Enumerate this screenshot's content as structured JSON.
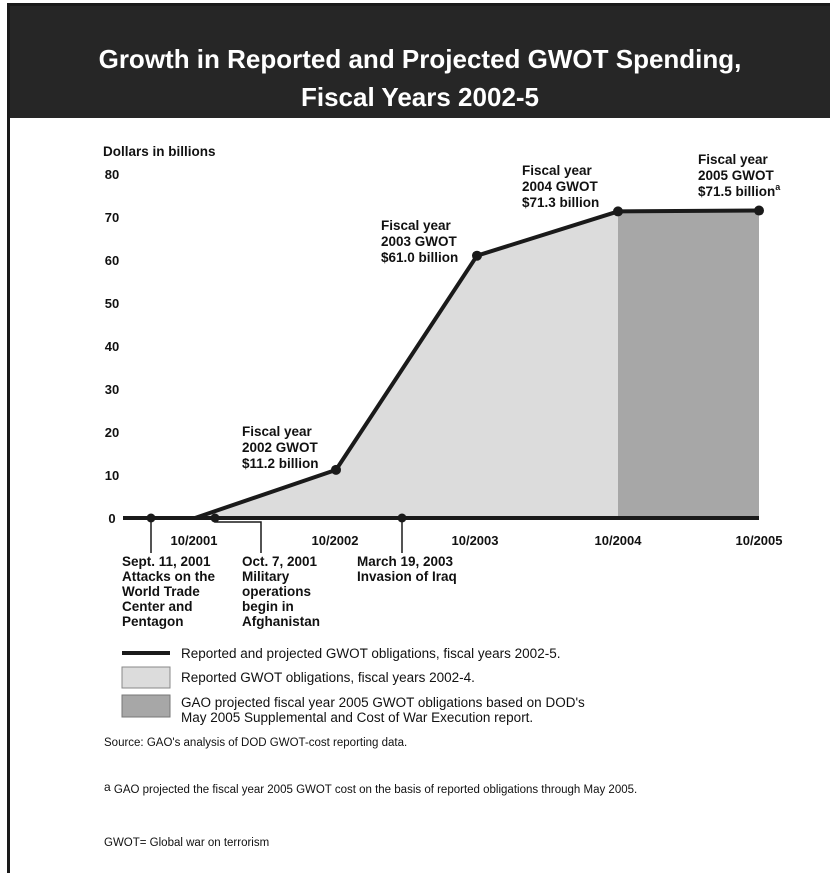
{
  "header": {
    "title_line1": "Growth in Reported and Projected GWOT Spending,",
    "title_line2": "Fiscal Years 2002-5"
  },
  "chart_data": {
    "type": "area",
    "title": "Growth in Reported and Projected GWOT Spending, Fiscal Years 2002-5",
    "ylabel": "Dollars in billions",
    "ylim": [
      0,
      80
    ],
    "yticks": [
      "0",
      "10",
      "20",
      "30",
      "40",
      "50",
      "60",
      "70",
      "80"
    ],
    "xticks": [
      "10/2001",
      "10/2002",
      "10/2003",
      "10/2004",
      "10/2005"
    ],
    "grid": false,
    "series": [
      {
        "name": "Reported and projected GWOT obligations, fiscal years 2002-5.",
        "x": [
          "10/2001",
          "10/2002",
          "10/2003",
          "10/2004",
          "10/2005"
        ],
        "values": [
          0,
          11.2,
          61.0,
          71.3,
          71.5
        ]
      }
    ],
    "points": [
      {
        "x": "10/2002",
        "value": 11.2,
        "label": [
          "Fiscal year",
          "2002 GWOT",
          "$11.2 billion"
        ]
      },
      {
        "x": "10/2003",
        "value": 61.0,
        "label": [
          "Fiscal year",
          "2003 GWOT",
          "$61.0 billion"
        ]
      },
      {
        "x": "10/2004",
        "value": 71.3,
        "label": [
          "Fiscal year",
          "2004 GWOT",
          "$71.3 billion"
        ]
      },
      {
        "x": "10/2005",
        "value": 71.5,
        "label": [
          "Fiscal year",
          "2005 GWOT",
          "$71.5 billion"
        ],
        "footnote": "a"
      }
    ],
    "events": [
      {
        "date": "Sept. 11, 2001",
        "label": [
          "Sept. 11, 2001",
          "Attacks on the",
          "World Trade",
          "Center and",
          "Pentagon"
        ]
      },
      {
        "date": "Oct. 7, 2001",
        "label": [
          "Oct. 7, 2001",
          "Military",
          "operations",
          "begin in",
          "Afghanistan"
        ]
      },
      {
        "date": "March 19, 2003",
        "label": [
          "March 19, 2003",
          "Invasion of Iraq"
        ]
      }
    ],
    "regions": [
      {
        "label": "Reported GWOT obligations, fiscal years 2002-4.",
        "color": "#dcdcdc"
      },
      {
        "label": "GAO projected fiscal year 2005 GWOT obligations based on DOD's May 2005 Supplemental and Cost of War Execution report.",
        "color": "#a7a7a7"
      }
    ]
  },
  "legend": {
    "line_label": "Reported and projected GWOT obligations, fiscal years 2002-5.",
    "light_label": "Reported GWOT obligations, fiscal years 2002-4.",
    "dark_label_line1": "GAO projected fiscal year 2005 GWOT obligations based on DOD's",
    "dark_label_line2": "May 2005 Supplemental and Cost of War Execution report."
  },
  "notes": {
    "source": "Source: GAO's analysis of DOD GWOT-cost reporting data.",
    "footnote_marker": "a",
    "footnote": " GAO projected the fiscal year 2005 GWOT cost on the basis of reported obligations through May 2005.",
    "abbrev": "GWOT= Global war on terrorism"
  },
  "colors": {
    "line": "#1a1a1a",
    "light_fill": "#dcdcdc",
    "dark_fill": "#a7a7a7",
    "title_bg": "#262626"
  }
}
